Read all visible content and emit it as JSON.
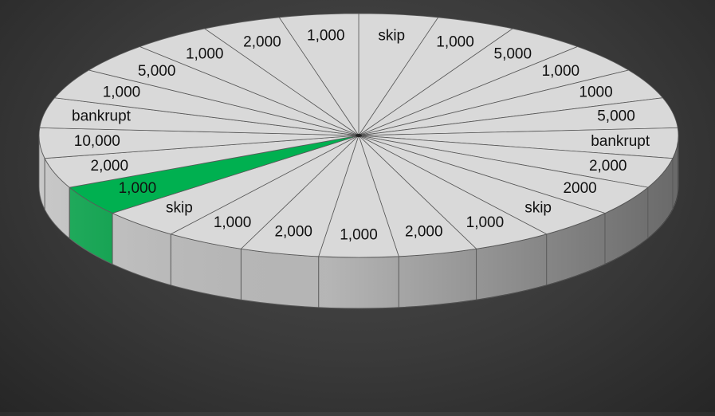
{
  "wheel": {
    "segments": [
      "skip",
      "1,000",
      "5,000",
      "1,000",
      "1000",
      "5,000",
      "bankrupt",
      "2,000",
      "2000",
      "skip",
      "1,000",
      "2,000",
      "1,000",
      "2,000",
      "1,000",
      "skip",
      "1,000",
      "2,000",
      "10,000",
      "bankrupt",
      "1,000",
      "5,000",
      "1,000",
      "2,000",
      "1,000"
    ],
    "highlighted_index": 16,
    "colors": {
      "face": "#d9d9d9",
      "side": "#bfbfbf",
      "highlight": "#00b050",
      "highlight_side": "#00a045",
      "line": "#595959",
      "background": "#3a3a3a"
    }
  }
}
